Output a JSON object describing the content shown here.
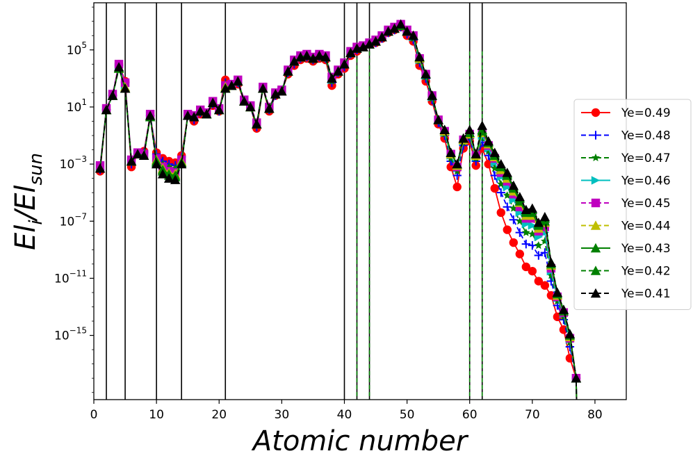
{
  "chart_data": {
    "type": "line",
    "xlabel": "Atomic number",
    "ylabel_base": "El",
    "ylabel_base_sub": "i",
    "ylabel_sep": "/El",
    "ylabel_sep_sub": "sun",
    "xlim": [
      0,
      85
    ],
    "ylim_log10": [
      -19.5,
      8.3
    ],
    "yscale": "log",
    "grid": false,
    "legend_position": "right",
    "x_ticks": [
      0,
      10,
      20,
      30,
      40,
      50,
      60,
      70,
      80
    ],
    "x_tick_labels": [
      "0",
      "10",
      "20",
      "30",
      "40",
      "50",
      "60",
      "70",
      "80"
    ],
    "y_ticks": [
      {
        "base": "10",
        "exp": "5",
        "log10": 5
      },
      {
        "base": "10",
        "exp": "1",
        "log10": 1
      },
      {
        "base": "10",
        "exp": "−3",
        "log10": -3
      },
      {
        "base": "10",
        "exp": "−7",
        "log10": -7
      },
      {
        "base": "10",
        "exp": "−11",
        "log10": -11
      },
      {
        "base": "10",
        "exp": "−15",
        "log10": -15
      }
    ],
    "vertical_lines": [
      {
        "x": 2,
        "color": "#000000",
        "dashed": false
      },
      {
        "x": 5,
        "color": "#000000",
        "dashed": false
      },
      {
        "x": 10,
        "color": "#000000",
        "dashed": false
      },
      {
        "x": 14,
        "color": "#000000",
        "dashed": false
      },
      {
        "x": 21,
        "color": "#000000",
        "dashed": false
      },
      {
        "x": 40,
        "color": "#000000",
        "dashed": false
      },
      {
        "x": 42,
        "color": "#000000",
        "dashed": true
      },
      {
        "x": 44,
        "color": "#000000",
        "dashed": true
      },
      {
        "x": 60,
        "color": "#000000",
        "dashed": true
      },
      {
        "x": 62,
        "color": "#000000",
        "dashed": true
      }
    ],
    "x": [
      1,
      2,
      3,
      4,
      5,
      6,
      7,
      8,
      9,
      10,
      11,
      12,
      13,
      14,
      15,
      16,
      17,
      18,
      19,
      20,
      21,
      22,
      23,
      24,
      25,
      26,
      27,
      28,
      29,
      30,
      31,
      32,
      33,
      34,
      35,
      36,
      37,
      38,
      39,
      40,
      41,
      42,
      43,
      44,
      45,
      46,
      47,
      48,
      49,
      50,
      51,
      52,
      53,
      54,
      55,
      56,
      57,
      58,
      59,
      60,
      61,
      62,
      63,
      64,
      65,
      66,
      67,
      68,
      69,
      70,
      71,
      72,
      73,
      74,
      75,
      76,
      77
    ],
    "base_log10": [
      -3.3,
      0.8,
      1.8,
      3.7,
      2.3,
      -2.8,
      -2.3,
      -2.4,
      0.3,
      -2.8,
      -3.4,
      -3.7,
      -3.8,
      -2.9,
      0.4,
      0.3,
      0.7,
      0.5,
      1.3,
      0.8,
      2.3,
      2.5,
      2.8,
      1.4,
      1.0,
      -0.2,
      2.3,
      0.9,
      1.9,
      2.1,
      3.5,
      4.2,
      4.5,
      4.6,
      4.4,
      4.6,
      4.5,
      3.0,
      3.5,
      4.0,
      4.8,
      5.1,
      5.2,
      5.4,
      5.6,
      5.9,
      6.3,
      6.5,
      6.7,
      6.3,
      6.0,
      4.5,
      3.3,
      1.8,
      0.1,
      -0.6,
      -2.2,
      -3.0,
      -1.2,
      -0.8,
      -2.3,
      -0.6,
      -1.4,
      -2.2,
      -3.0,
      -3.6,
      -4.5,
      -5.3,
      -6.2,
      -6.1,
      -7.1,
      -6.7,
      -9.9,
      -12.0,
      -13.2,
      -14.9,
      -18.0
    ],
    "series": [
      {
        "name": "Ye=0.49",
        "color": "#ff0000",
        "marker": "circle",
        "dash": "solid",
        "offsets": [
          -0.2,
          0,
          0,
          0.3,
          0.5,
          -0.4,
          0,
          0.3,
          0.1,
          0.6,
          0.8,
          0.9,
          0.9,
          0.5,
          0,
          -0.3,
          -0.2,
          0,
          -0.2,
          -0.1,
          0.6,
          0,
          -0.2,
          0,
          0,
          -0.3,
          0,
          -0.2,
          -0.1,
          0,
          -0.2,
          -0.3,
          -0.2,
          -0.2,
          -0.2,
          -0.2,
          -0.2,
          -0.5,
          -0.2,
          -0.3,
          -0.2,
          -0.2,
          0,
          0,
          -0.1,
          -0.1,
          -0.1,
          -0.1,
          -0.1,
          -0.3,
          -0.4,
          -0.6,
          -0.5,
          -0.4,
          -0.3,
          -0.6,
          -1.0,
          -1.6,
          -0.7,
          -0.6,
          -0.8,
          -1.3,
          -1.6,
          -2.5,
          -3.4,
          -4.0,
          -4.0,
          -4.0,
          -4.0,
          -4.4,
          -4.1,
          -4.8,
          -2.3,
          -1.7,
          -1.4,
          -1.7,
          0
        ]
      },
      {
        "name": "Ye=0.48",
        "color": "#0000ff",
        "marker": "plus",
        "dash": "dashed",
        "offsets": [
          -0.1,
          0,
          0,
          0.2,
          0.4,
          -0.2,
          0,
          0.2,
          0.1,
          0.5,
          0.6,
          0.7,
          0.7,
          0.4,
          0,
          -0.2,
          -0.1,
          0,
          -0.1,
          -0.1,
          0.4,
          0,
          -0.1,
          0,
          0,
          -0.2,
          0,
          -0.1,
          -0.1,
          0,
          -0.1,
          -0.2,
          -0.1,
          -0.1,
          -0.1,
          -0.1,
          -0.1,
          -0.3,
          -0.1,
          -0.2,
          -0.1,
          -0.1,
          0,
          0,
          -0.1,
          -0.1,
          -0.1,
          -0.1,
          -0.1,
          -0.2,
          -0.3,
          -0.4,
          -0.3,
          -0.3,
          -0.2,
          -0.4,
          -0.6,
          -0.8,
          -0.5,
          -0.4,
          -0.5,
          -0.9,
          -1.0,
          -1.6,
          -2.0,
          -2.4,
          -2.4,
          -2.5,
          -2.4,
          -2.6,
          -2.3,
          -2.5,
          -1.3,
          -0.9,
          -0.7,
          -0.9,
          0
        ]
      },
      {
        "name": "Ye=0.47",
        "color": "#008000",
        "marker": "star",
        "dash": "dashed",
        "offsets": [
          0,
          0,
          0,
          0.1,
          0.3,
          -0.1,
          0,
          0.1,
          0.1,
          0.3,
          0.4,
          0.5,
          0.5,
          0.3,
          0,
          -0.1,
          0,
          0,
          -0.1,
          0,
          0.3,
          0,
          -0.1,
          0,
          0,
          -0.1,
          0,
          -0.1,
          0,
          0,
          -0.1,
          -0.1,
          -0.1,
          -0.1,
          -0.1,
          -0.1,
          -0.1,
          -0.2,
          -0.1,
          -0.1,
          -0.1,
          -0.1,
          0,
          0,
          0,
          0,
          0,
          0,
          0,
          -0.1,
          -0.2,
          -0.3,
          -0.2,
          -0.2,
          -0.1,
          -0.3,
          -0.4,
          -0.5,
          -0.3,
          -0.3,
          -0.3,
          -0.6,
          -0.7,
          -1.1,
          -1.4,
          -1.6,
          -1.6,
          -1.7,
          -1.6,
          -1.8,
          -1.6,
          -1.7,
          -0.9,
          -0.6,
          -0.5,
          -0.6,
          0
        ]
      },
      {
        "name": "Ye=0.46",
        "color": "#00bfbf",
        "marker": "triangle-right",
        "dash": "solid",
        "offsets": [
          0.1,
          0,
          0,
          0.1,
          0.2,
          0,
          0,
          0.1,
          0.1,
          0.2,
          0.3,
          0.3,
          0.3,
          0.2,
          0,
          0,
          0,
          0,
          0,
          0,
          0.2,
          0,
          0,
          0,
          0,
          0,
          0,
          0,
          0,
          0,
          0,
          0,
          0,
          0,
          0,
          0,
          0,
          -0.1,
          0,
          0,
          0,
          0,
          0,
          0,
          0,
          0,
          0,
          0,
          0,
          0,
          -0.1,
          -0.2,
          -0.1,
          -0.1,
          0,
          -0.2,
          -0.2,
          -0.3,
          -0.2,
          -0.2,
          -0.2,
          -0.4,
          -0.5,
          -0.7,
          -0.9,
          -1.0,
          -1.0,
          -1.1,
          -1.0,
          -1.2,
          -1.0,
          -1.1,
          -0.6,
          -0.4,
          -0.3,
          -0.4,
          0
        ]
      },
      {
        "name": "Ye=0.45",
        "color": "#bf00bf",
        "marker": "square",
        "dash": "dashed",
        "offsets": [
          0.2,
          0.1,
          0.1,
          0.3,
          0.4,
          0.1,
          0.1,
          0.1,
          0.2,
          0.2,
          0.2,
          0.2,
          0.2,
          0.2,
          0.1,
          0.1,
          0.1,
          0.1,
          0.1,
          0.1,
          0.2,
          0.1,
          0.1,
          0.1,
          0.1,
          0.1,
          0.1,
          0.1,
          0.1,
          0.1,
          0.1,
          0.1,
          0.1,
          0.1,
          0.1,
          0.1,
          0.1,
          0.1,
          0.1,
          0.1,
          0.1,
          0.1,
          0.1,
          0.1,
          0.1,
          0.1,
          0.1,
          0.1,
          0.1,
          0.1,
          0,
          -0.1,
          0,
          0,
          0,
          -0.1,
          -0.1,
          -0.2,
          -0.1,
          -0.1,
          -0.1,
          -0.2,
          -0.3,
          -0.4,
          -0.6,
          -0.6,
          -0.6,
          -0.7,
          -0.6,
          -0.7,
          -0.6,
          -0.7,
          -0.4,
          -0.3,
          -0.2,
          -0.3,
          0
        ]
      },
      {
        "name": "Ye=0.44",
        "color": "#bfbf00",
        "marker": "triangle-up",
        "dash": "dashed",
        "offsets": [
          0,
          0,
          0,
          0,
          0.1,
          0,
          0,
          0,
          0,
          0.1,
          0.1,
          0.1,
          0.1,
          0.1,
          0,
          0,
          0,
          0,
          0,
          0,
          0.1,
          0,
          0,
          0,
          0,
          0,
          0,
          0,
          0,
          0,
          0,
          0,
          0,
          0,
          0,
          0,
          0,
          0,
          0,
          0,
          0,
          0,
          0,
          0,
          0,
          0,
          0,
          0,
          0,
          0,
          0,
          -0.1,
          0,
          0,
          0,
          -0.1,
          -0.1,
          -0.1,
          -0.1,
          -0.1,
          -0.1,
          -0.2,
          -0.2,
          -0.3,
          -0.4,
          -0.4,
          -0.4,
          -0.4,
          -0.4,
          -0.5,
          -0.4,
          -0.4,
          -0.2,
          -0.2,
          -0.1,
          -0.2,
          0
        ]
      },
      {
        "name": "Ye=0.43",
        "color": "#008000",
        "marker": "triangle-up",
        "dash": "solid",
        "offsets": [
          0,
          0,
          0,
          0,
          0,
          0,
          0,
          0,
          0,
          0,
          0,
          0,
          0,
          0,
          0,
          0,
          0,
          0,
          0,
          0,
          0,
          0,
          0,
          0,
          0,
          0,
          0,
          0,
          0,
          0,
          0,
          0,
          0,
          0,
          0,
          0,
          0,
          0,
          0,
          0,
          0,
          0,
          0,
          0,
          0,
          0,
          0,
          0,
          0,
          0,
          0,
          0,
          0,
          0,
          0,
          0,
          0,
          0,
          0,
          0,
          0,
          -0.1,
          -0.1,
          -0.2,
          -0.2,
          -0.2,
          -0.2,
          -0.3,
          -0.2,
          -0.3,
          -0.2,
          -0.3,
          -0.1,
          -0.1,
          -0.1,
          -0.1,
          0
        ]
      },
      {
        "name": "Ye=0.42",
        "color": "#008000",
        "marker": "triangle-up",
        "dash": "dashed",
        "offsets": [
          0,
          0,
          0,
          0,
          0,
          0,
          0,
          0,
          0,
          -0.1,
          -0.1,
          -0.1,
          -0.1,
          0,
          0,
          0,
          0,
          0,
          0,
          0,
          0,
          0,
          0,
          0,
          0,
          0,
          0,
          0,
          0,
          0,
          0,
          0,
          0,
          0,
          0,
          0,
          0,
          0,
          0,
          0,
          0,
          0,
          0,
          0,
          0,
          0,
          0,
          0,
          0,
          0,
          0,
          0,
          0,
          0,
          0,
          0,
          0,
          0,
          0,
          0,
          0,
          0,
          0,
          -0.1,
          -0.1,
          -0.1,
          -0.1,
          -0.1,
          -0.1,
          -0.1,
          -0.1,
          -0.1,
          0,
          0,
          0,
          0,
          0
        ]
      },
      {
        "name": "Ye=0.41",
        "color": "#000000",
        "marker": "triangle-up",
        "dash": "dashed",
        "offsets": [
          0,
          0,
          0,
          0.1,
          0,
          0,
          0,
          0,
          0.1,
          -0.2,
          -0.3,
          -0.3,
          -0.3,
          -0.1,
          0,
          0,
          0,
          0,
          0,
          0,
          0,
          0,
          0,
          0,
          0,
          0,
          0,
          0,
          0,
          0,
          0,
          0,
          0,
          0,
          0,
          0,
          0,
          0,
          0,
          0,
          0,
          0,
          0,
          0,
          0,
          0,
          0,
          0,
          0.1,
          0,
          0,
          0,
          0,
          0,
          0,
          0,
          0,
          0,
          0,
          0.2,
          0,
          0.3,
          0,
          0,
          0,
          0,
          0,
          0,
          0,
          0,
          0,
          0,
          0,
          0,
          0,
          0,
          0
        ]
      }
    ]
  }
}
